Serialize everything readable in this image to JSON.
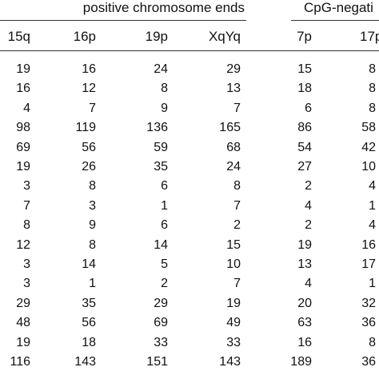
{
  "groups": {
    "left_label": "positive chromosome ends",
    "right_label": "CpG-negati"
  },
  "columns": [
    "15q",
    "16p",
    "19p",
    "XqYq",
    "7p",
    "17p"
  ],
  "rows": [
    [
      "19",
      "16",
      "24",
      "29",
      "15",
      "8"
    ],
    [
      "16",
      "12",
      "8",
      "13",
      "18",
      "8"
    ],
    [
      "4",
      "7",
      "9",
      "7",
      "6",
      "8"
    ],
    [
      "98",
      "119",
      "136",
      "165",
      "86",
      "58"
    ],
    [
      "69",
      "56",
      "59",
      "68",
      "54",
      "42"
    ],
    [
      "19",
      "26",
      "35",
      "24",
      "27",
      "10"
    ],
    [
      "3",
      "8",
      "6",
      "8",
      "2",
      "4"
    ],
    [
      "7",
      "3",
      "1",
      "7",
      "4",
      "1"
    ],
    [
      "8",
      "9",
      "6",
      "2",
      "2",
      "4"
    ],
    [
      "12",
      "8",
      "14",
      "15",
      "19",
      "16"
    ],
    [
      "3",
      "14",
      "5",
      "10",
      "13",
      "17"
    ],
    [
      "3",
      "1",
      "2",
      "7",
      "4",
      "1"
    ],
    [
      "29",
      "35",
      "29",
      "19",
      "20",
      "32"
    ],
    [
      "48",
      "56",
      "69",
      "49",
      "63",
      "36"
    ],
    [
      "19",
      "18",
      "33",
      "33",
      "16",
      "8"
    ],
    [
      "116",
      "143",
      "151",
      "143",
      "189",
      "36"
    ]
  ]
}
